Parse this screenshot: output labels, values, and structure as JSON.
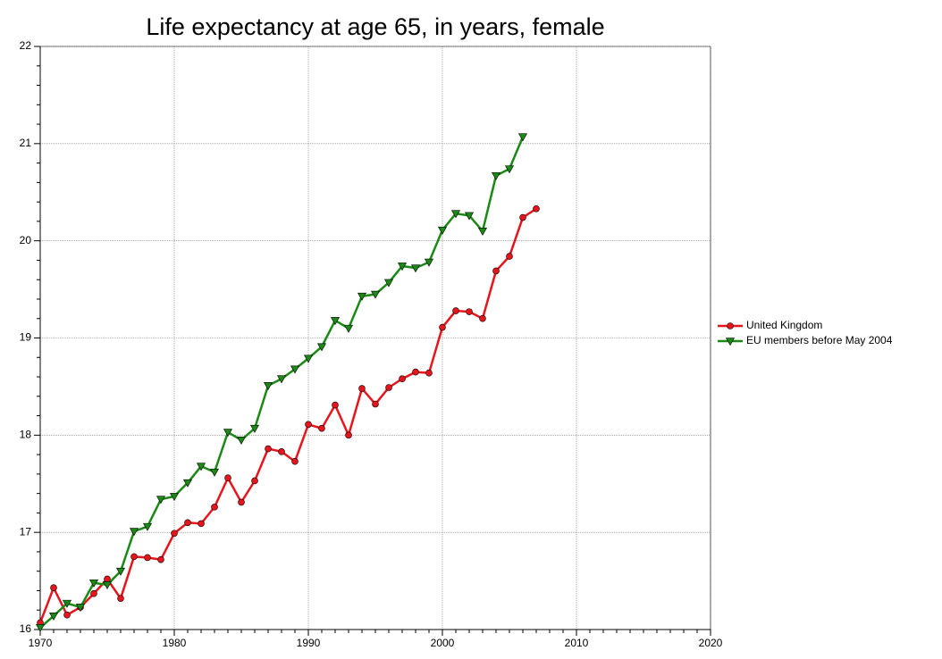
{
  "chart_data": {
    "type": "line",
    "title": "Life expectancy at age 65, in years, female",
    "x": [
      1970,
      1971,
      1972,
      1973,
      1974,
      1975,
      1976,
      1977,
      1978,
      1979,
      1980,
      1981,
      1982,
      1983,
      1984,
      1985,
      1986,
      1987,
      1988,
      1989,
      1990,
      1991,
      1992,
      1993,
      1994,
      1995,
      1996,
      1997,
      1998,
      1999,
      2000,
      2001,
      2002,
      2003,
      2004,
      2005,
      2006,
      2007
    ],
    "series": [
      {
        "name": "United Kingdom",
        "color": "#e8141c",
        "marker": "circle",
        "values": [
          16.07,
          16.43,
          16.15,
          16.23,
          16.37,
          16.52,
          16.32,
          16.75,
          16.74,
          16.72,
          16.99,
          17.1,
          17.09,
          17.26,
          17.56,
          17.31,
          17.53,
          17.86,
          17.83,
          17.73,
          18.11,
          18.07,
          18.31,
          18.0,
          18.48,
          18.32,
          18.49,
          18.58,
          18.65,
          18.64,
          19.11,
          19.28,
          19.27,
          19.2,
          19.69,
          19.84,
          20.24,
          20.33
        ]
      },
      {
        "name": "EU members before May 2004",
        "color": "#1a8a14",
        "marker": "triangle-down",
        "values": [
          16.02,
          16.14,
          16.27,
          16.23,
          16.48,
          16.46,
          16.6,
          17.01,
          17.06,
          17.34,
          17.37,
          17.51,
          17.68,
          17.62,
          18.03,
          17.95,
          18.07,
          18.51,
          18.58,
          18.68,
          18.79,
          18.91,
          19.18,
          19.1,
          19.43,
          19.45,
          19.57,
          19.74,
          19.72,
          19.78,
          20.11,
          20.28,
          20.26,
          20.1,
          20.67,
          20.74,
          21.07,
          null
        ]
      }
    ],
    "xlim": [
      1970,
      2020
    ],
    "xticks": [
      1970,
      1980,
      1990,
      2000,
      2010,
      2020
    ],
    "ylim": [
      16,
      22
    ],
    "yticks": [
      16,
      17,
      18,
      19,
      20,
      21,
      22
    ],
    "grid": true,
    "legend": "right"
  }
}
